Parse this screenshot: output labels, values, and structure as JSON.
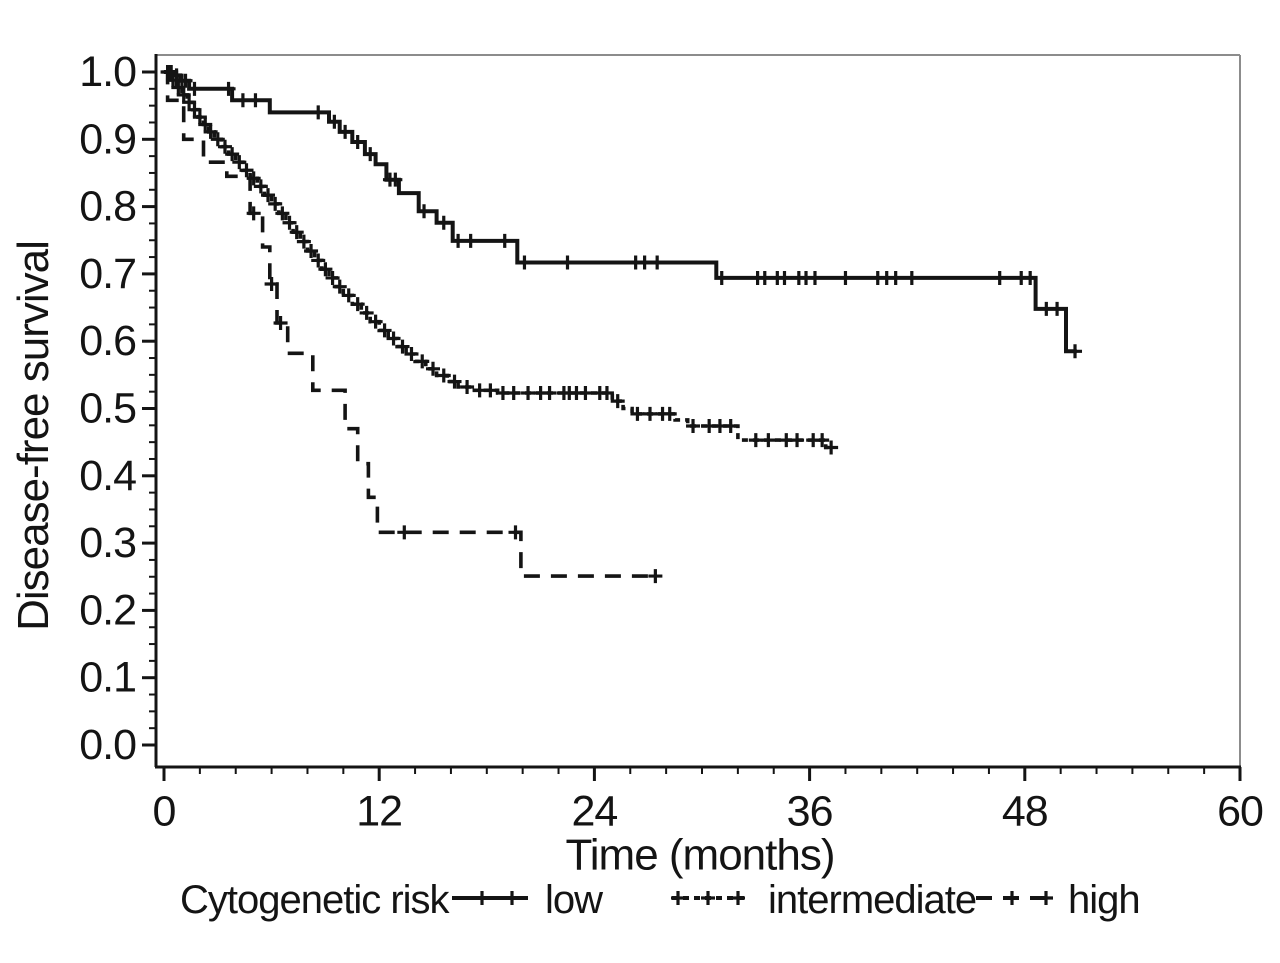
{
  "figure": {
    "background": "#ffffff",
    "ink_color": "#141414",
    "frame_light_color": "#8c8c8c"
  },
  "chart_data": {
    "type": "line",
    "subtype": "kaplan_meier_step",
    "title": "",
    "xlabel": "Time (months)",
    "ylabel": "Disease-free survival",
    "xlim": [
      0,
      60
    ],
    "ylim": [
      0.0,
      1.0
    ],
    "grid": false,
    "xticks": {
      "values": [
        0,
        12,
        24,
        36,
        48,
        60
      ],
      "labels": [
        "0",
        "12",
        "24",
        "36",
        "48",
        "60"
      ],
      "minor_step": 2
    },
    "yticks": {
      "values": [
        0.0,
        0.1,
        0.2,
        0.3,
        0.4,
        0.5,
        0.6,
        0.7,
        0.8,
        0.9,
        1.0
      ],
      "labels": [
        "0.0",
        "0.1",
        "0.2",
        "0.3",
        "0.4",
        "0.5",
        "0.6",
        "0.7",
        "0.8",
        "0.9",
        "1.0"
      ],
      "minor_per_major": 4
    },
    "legend": {
      "title": "Cytogenetic risk",
      "position": "bottom",
      "entries": [
        {
          "name": "low",
          "label": "low"
        },
        {
          "name": "intermediate",
          "label": "intermediate"
        },
        {
          "name": "high",
          "label": "high"
        }
      ]
    },
    "series": [
      {
        "name": "low",
        "label": "low",
        "style": "solid",
        "points": [
          [
            0,
            1.0
          ],
          [
            0.5,
            0.995
          ],
          [
            0.9,
            0.987
          ],
          [
            1.4,
            0.975
          ],
          [
            3.8,
            0.958
          ],
          [
            5.9,
            0.94
          ],
          [
            9.2,
            0.926
          ],
          [
            9.8,
            0.911
          ],
          [
            10.5,
            0.896
          ],
          [
            11.2,
            0.878
          ],
          [
            11.8,
            0.863
          ],
          [
            12.4,
            0.84
          ],
          [
            13.1,
            0.82
          ],
          [
            14.2,
            0.793
          ],
          [
            15.2,
            0.776
          ],
          [
            16.1,
            0.749
          ],
          [
            19.7,
            0.717
          ],
          [
            30.8,
            0.694
          ],
          [
            48.6,
            0.648
          ],
          [
            50.3,
            0.585
          ]
        ],
        "end": 50.9,
        "censor_times": [
          0.2,
          0.4,
          0.7,
          1.0,
          1.2,
          1.7,
          3.6,
          4.4,
          5.1,
          8.6,
          9.5,
          10.1,
          10.8,
          11.5,
          12.6,
          12.9,
          14.5,
          15.6,
          16.4,
          17.1,
          19.0,
          20.1,
          22.5,
          26.3,
          26.8,
          27.5,
          31.1,
          33.1,
          33.5,
          34.2,
          34.6,
          35.4,
          35.8,
          36.3,
          38.0,
          39.8,
          40.3,
          40.8,
          41.7,
          46.6,
          47.8,
          48.3,
          49.2,
          49.8,
          50.8
        ]
      },
      {
        "name": "intermediate",
        "label": "intermediate",
        "style": "short-dash",
        "points": [
          [
            0,
            1.0
          ],
          [
            0.4,
            0.988
          ],
          [
            0.7,
            0.977
          ],
          [
            1.0,
            0.966
          ],
          [
            1.3,
            0.955
          ],
          [
            1.6,
            0.944
          ],
          [
            1.9,
            0.933
          ],
          [
            2.2,
            0.922
          ],
          [
            2.5,
            0.911
          ],
          [
            2.8,
            0.9
          ],
          [
            3.2,
            0.889
          ],
          [
            3.6,
            0.878
          ],
          [
            4.0,
            0.866
          ],
          [
            4.4,
            0.854
          ],
          [
            4.8,
            0.842
          ],
          [
            5.2,
            0.83
          ],
          [
            5.6,
            0.817
          ],
          [
            6.0,
            0.804
          ],
          [
            6.4,
            0.79
          ],
          [
            6.8,
            0.776
          ],
          [
            7.2,
            0.762
          ],
          [
            7.6,
            0.748
          ],
          [
            8.0,
            0.734
          ],
          [
            8.4,
            0.72
          ],
          [
            8.8,
            0.707
          ],
          [
            9.2,
            0.694
          ],
          [
            9.6,
            0.681
          ],
          [
            10.0,
            0.668
          ],
          [
            10.5,
            0.655
          ],
          [
            11.0,
            0.642
          ],
          [
            11.5,
            0.629
          ],
          [
            12.0,
            0.616
          ],
          [
            12.5,
            0.604
          ],
          [
            13.0,
            0.592
          ],
          [
            13.5,
            0.581
          ],
          [
            14.0,
            0.57
          ],
          [
            14.6,
            0.559
          ],
          [
            15.2,
            0.549
          ],
          [
            15.8,
            0.54
          ],
          [
            16.4,
            0.532
          ],
          [
            17.2,
            0.527
          ],
          [
            18.6,
            0.523
          ],
          [
            25.0,
            0.511
          ],
          [
            25.6,
            0.5
          ],
          [
            26.1,
            0.492
          ],
          [
            28.5,
            0.483
          ],
          [
            29.2,
            0.474
          ],
          [
            32.0,
            0.453
          ],
          [
            36.9,
            0.442
          ]
        ],
        "end": 37.3,
        "censor_times": [
          0.3,
          0.5,
          0.8,
          1.1,
          1.4,
          1.7,
          2.0,
          2.3,
          2.6,
          3.0,
          3.4,
          3.8,
          4.2,
          4.6,
          5.0,
          5.4,
          5.8,
          6.2,
          6.6,
          7.0,
          7.4,
          7.8,
          8.2,
          8.6,
          9.0,
          9.4,
          9.8,
          10.3,
          10.8,
          11.3,
          11.8,
          12.3,
          12.8,
          13.3,
          13.8,
          14.4,
          15.0,
          15.6,
          16.2,
          16.9,
          17.6,
          18.2,
          18.9,
          19.5,
          20.3,
          21.0,
          21.5,
          22.3,
          22.6,
          23.0,
          23.5,
          24.3,
          24.7,
          25.3,
          26.4,
          27.1,
          27.8,
          28.2,
          29.5,
          30.4,
          31.0,
          31.6,
          33.0,
          33.7,
          34.7,
          35.3,
          36.2,
          36.7,
          37.2
        ]
      },
      {
        "name": "high",
        "label": "high",
        "style": "long-dash",
        "points": [
          [
            0,
            1.0
          ],
          [
            0.2,
            0.958
          ],
          [
            1.1,
            0.9
          ],
          [
            2.2,
            0.866
          ],
          [
            3.5,
            0.845
          ],
          [
            4.8,
            0.79
          ],
          [
            5.5,
            0.74
          ],
          [
            5.9,
            0.685
          ],
          [
            6.3,
            0.627
          ],
          [
            6.9,
            0.582
          ],
          [
            8.3,
            0.527
          ],
          [
            10.1,
            0.47
          ],
          [
            10.8,
            0.418
          ],
          [
            11.4,
            0.368
          ],
          [
            11.9,
            0.316
          ],
          [
            19.9,
            0.251
          ]
        ],
        "end": 27.5,
        "censor_times": [
          5.0,
          6.0,
          6.5,
          13.4,
          19.6,
          27.4
        ]
      }
    ]
  }
}
